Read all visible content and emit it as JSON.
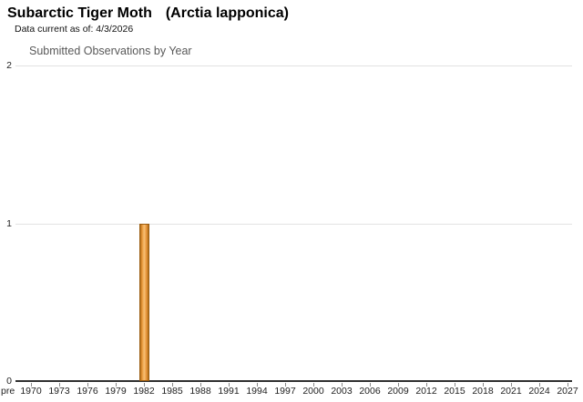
{
  "header": {
    "common_name": "Subarctic Tiger Moth",
    "scientific_name": "(Arctia lapponica)",
    "data_current_note": "Data current as of: 4/3/2026"
  },
  "chart_data": {
    "type": "bar",
    "title": "Submitted Observations by Year",
    "xlabel": "",
    "ylabel": "",
    "categories": [
      "pre",
      "1970",
      "1973",
      "1976",
      "1979",
      "1982",
      "1985",
      "1988",
      "1991",
      "1994",
      "1997",
      "2000",
      "2003",
      "2006",
      "2009",
      "2012",
      "2015",
      "2018",
      "2021",
      "2024",
      "2027"
    ],
    "values": [
      0,
      0,
      0,
      0,
      0,
      1,
      0,
      0,
      0,
      0,
      0,
      0,
      0,
      0,
      0,
      0,
      0,
      0,
      0,
      0,
      0
    ],
    "observations": [
      {
        "year": "1982",
        "count": 1
      }
    ],
    "yticks": [
      0,
      1,
      2
    ],
    "ylim": [
      0,
      2
    ],
    "grid": "horizontal",
    "legend_position": "none",
    "bar_fill_color": "#ec9c40",
    "bar_border_color": "#9a5c10",
    "gridline_color": "#e2e2e2",
    "axis_color": "#2f2f2f",
    "title_color": "#595959"
  }
}
